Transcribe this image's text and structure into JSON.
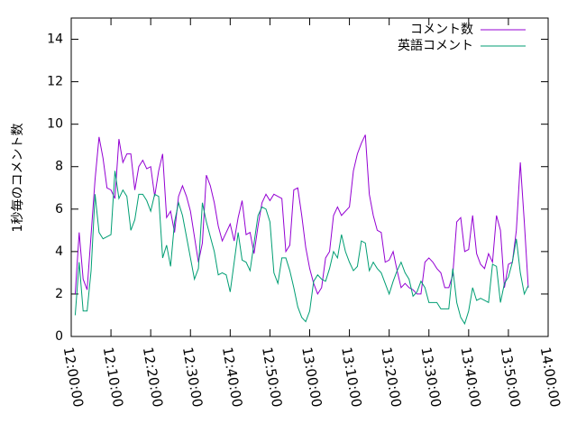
{
  "chart_data": {
    "type": "line",
    "ylabel": "1秒毎のコメント数",
    "xlim": [
      "12:00:00",
      "14:00:00"
    ],
    "xticks": [
      "12:00:00",
      "12:10:00",
      "12:20:00",
      "12:30:00",
      "12:40:00",
      "12:50:00",
      "13:00:00",
      "13:10:00",
      "13:20:00",
      "13:30:00",
      "13:40:00",
      "13:50:00",
      "14:00:00"
    ],
    "ylim": [
      0,
      15
    ],
    "yticks": [
      0,
      2,
      4,
      6,
      8,
      10,
      12,
      14
    ],
    "legend": "top-right",
    "x": [
      "12:01:00",
      "12:02:00",
      "12:03:00",
      "12:04:00",
      "12:05:00",
      "12:06:00",
      "12:07:00",
      "12:08:00",
      "12:09:00",
      "12:10:00",
      "12:11:00",
      "12:12:00",
      "12:13:00",
      "12:14:00",
      "12:15:00",
      "12:16:00",
      "12:17:00",
      "12:18:00",
      "12:19:00",
      "12:20:00",
      "12:21:00",
      "12:22:00",
      "12:23:00",
      "12:24:00",
      "12:25:00",
      "12:26:00",
      "12:27:00",
      "12:28:00",
      "12:29:00",
      "12:30:00",
      "12:31:00",
      "12:32:00",
      "12:33:00",
      "12:34:00",
      "12:35:00",
      "12:36:00",
      "12:37:00",
      "12:38:00",
      "12:39:00",
      "12:40:00",
      "12:41:00",
      "12:42:00",
      "12:43:00",
      "12:44:00",
      "12:45:00",
      "12:46:00",
      "12:47:00",
      "12:48:00",
      "12:49:00",
      "12:50:00",
      "12:51:00",
      "12:52:00",
      "12:53:00",
      "12:54:00",
      "12:55:00",
      "12:56:00",
      "12:57:00",
      "12:58:00",
      "12:59:00",
      "13:00:00",
      "13:01:00",
      "13:02:00",
      "13:03:00",
      "13:04:00",
      "13:05:00",
      "13:06:00",
      "13:07:00",
      "13:08:00",
      "13:09:00",
      "13:10:00",
      "13:11:00",
      "13:12:00",
      "13:13:00",
      "13:14:00",
      "13:15:00",
      "13:16:00",
      "13:17:00",
      "13:18:00",
      "13:19:00",
      "13:20:00",
      "13:21:00",
      "13:22:00",
      "13:23:00",
      "13:24:00",
      "13:25:00",
      "13:26:00",
      "13:27:00",
      "13:28:00",
      "13:29:00",
      "13:30:00",
      "13:31:00",
      "13:32:00",
      "13:33:00",
      "13:34:00",
      "13:35:00",
      "13:36:00",
      "13:37:00",
      "13:38:00",
      "13:39:00",
      "13:40:00",
      "13:41:00",
      "13:42:00",
      "13:43:00",
      "13:44:00",
      "13:45:00",
      "13:46:00",
      "13:47:00",
      "13:48:00",
      "13:49:00",
      "13:50:00",
      "13:51:00",
      "13:52:00",
      "13:53:00",
      "13:54:00",
      "13:55:00"
    ],
    "series": [
      {
        "name": "コメント数",
        "color": "#9400d3",
        "values": [
          2.0,
          4.9,
          2.7,
          2.2,
          4.8,
          7.4,
          9.4,
          8.4,
          7.0,
          6.9,
          6.5,
          9.3,
          8.2,
          8.6,
          8.6,
          6.9,
          8.0,
          8.3,
          7.9,
          8.0,
          6.6,
          7.8,
          8.6,
          5.6,
          5.9,
          4.9,
          6.6,
          7.1,
          6.6,
          5.9,
          4.7,
          3.5,
          4.4,
          7.6,
          7.1,
          6.3,
          5.2,
          4.5,
          4.9,
          5.3,
          4.5,
          5.6,
          6.4,
          4.8,
          4.9,
          3.9,
          5.2,
          6.3,
          6.7,
          6.4,
          6.7,
          6.6,
          6.5,
          4.0,
          4.3,
          6.9,
          7.0,
          5.7,
          4.2,
          3.2,
          2.5,
          2.0,
          2.3,
          3.7,
          4.0,
          5.7,
          6.1,
          5.7,
          5.9,
          6.1,
          7.8,
          8.6,
          9.1,
          9.5,
          6.7,
          5.7,
          5.0,
          4.9,
          3.5,
          3.6,
          4.0,
          3.1,
          2.3,
          2.5,
          2.3,
          2.2,
          2.0,
          2.0,
          3.5,
          3.7,
          3.5,
          3.2,
          3.0,
          2.3,
          2.3,
          2.9,
          5.4,
          5.6,
          4.0,
          4.1,
          5.7,
          3.9,
          3.4,
          3.2,
          3.9,
          3.5,
          5.7,
          5.0,
          2.3,
          3.4,
          3.5,
          5.0,
          8.2,
          5.4,
          2.3
        ]
      },
      {
        "name": "英語コメント",
        "color": "#009e73",
        "values": [
          1.0,
          3.5,
          1.2,
          1.2,
          3.1,
          6.7,
          4.9,
          4.6,
          4.7,
          4.8,
          7.8,
          6.5,
          6.9,
          6.6,
          5.0,
          5.5,
          6.7,
          6.7,
          6.4,
          5.9,
          6.7,
          6.6,
          3.7,
          4.3,
          3.3,
          5.4,
          6.3,
          5.7,
          4.7,
          3.7,
          2.7,
          3.2,
          6.3,
          5.4,
          4.7,
          4.0,
          2.9,
          3.0,
          2.9,
          2.1,
          3.5,
          4.9,
          3.6,
          3.5,
          3.1,
          4.4,
          5.7,
          6.1,
          6.0,
          5.4,
          3.0,
          2.5,
          3.7,
          3.7,
          3.1,
          2.3,
          1.4,
          0.9,
          0.7,
          1.2,
          2.6,
          2.9,
          2.7,
          2.6,
          3.2,
          4.0,
          3.7,
          4.8,
          4.0,
          3.5,
          3.1,
          3.3,
          4.5,
          4.4,
          3.1,
          3.5,
          3.2,
          3.0,
          2.5,
          2.0,
          2.6,
          3.1,
          3.5,
          3.0,
          2.7,
          1.9,
          2.1,
          2.6,
          2.3,
          1.6,
          1.6,
          1.6,
          1.3,
          1.3,
          1.3,
          3.2,
          1.6,
          0.9,
          0.6,
          1.2,
          2.3,
          1.7,
          1.8,
          1.7,
          1.6,
          3.4,
          3.3,
          1.6,
          2.5,
          2.8,
          3.5,
          4.6,
          3.0,
          2.0,
          2.4
        ]
      }
    ]
  }
}
